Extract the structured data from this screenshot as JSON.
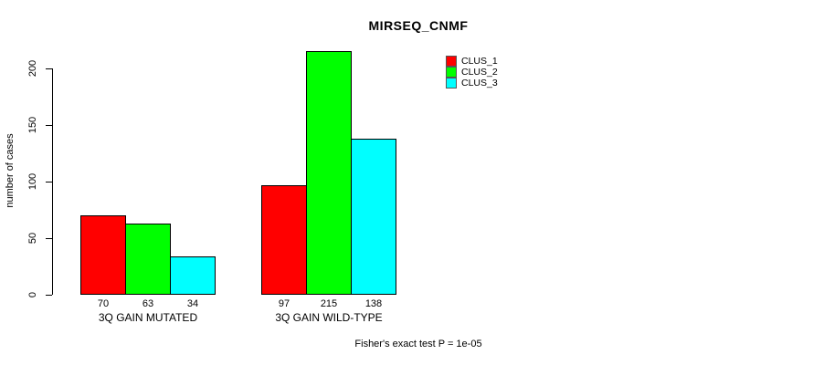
{
  "title": "MIRSEQ_CNMF",
  "footer": "Fisher's exact test P = 1e-05",
  "chart_data": {
    "type": "bar",
    "title": "MIRSEQ_CNMF",
    "xlabel": "",
    "ylabel": "number of cases",
    "categories": [
      "3Q GAIN MUTATED",
      "3Q GAIN WILD-TYPE"
    ],
    "series": [
      {
        "name": "CLUS_1",
        "color": "#ff0000",
        "values": [
          70,
          97
        ]
      },
      {
        "name": "CLUS_2",
        "color": "#00ff00",
        "values": [
          63,
          215
        ]
      },
      {
        "name": "CLUS_3",
        "color": "#00ffff",
        "values": [
          34,
          138
        ]
      }
    ],
    "bar_value_labels": [
      [
        70,
        63,
        34
      ],
      [
        97,
        215,
        138
      ]
    ],
    "y_ticks": [
      0,
      50,
      100,
      150,
      200
    ],
    "ylim": [
      0,
      215
    ],
    "grid": false,
    "legend_position": "top-right",
    "legend_entries": [
      "CLUS_1",
      "CLUS_2",
      "CLUS_3"
    ],
    "annotation": "Fisher's exact test P = 1e-05",
    "bar_border_color": "#000000",
    "axis_color": "#000000",
    "background_color": "#ffffff"
  }
}
